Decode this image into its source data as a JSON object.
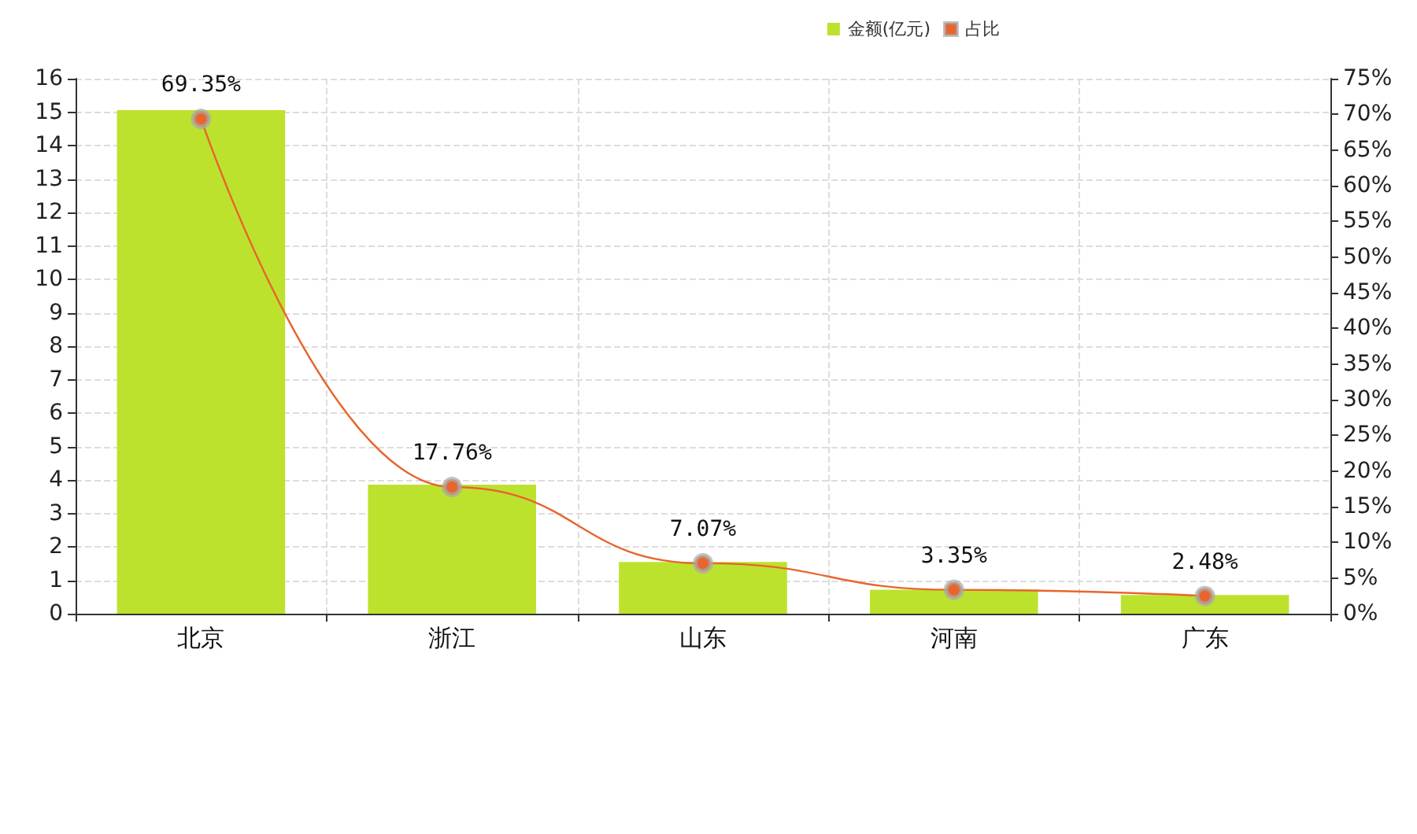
{
  "chart_data": {
    "type": "bar",
    "categories": [
      "北京",
      "浙江",
      "山东",
      "河南",
      "广东"
    ],
    "series": [
      {
        "name": "金额(亿元)",
        "color": "#bde22e",
        "values": [
          15.06,
          3.86,
          1.55,
          0.72,
          0.56
        ]
      },
      {
        "name": "占比",
        "type": "line",
        "axis": "y2",
        "color": "#e8652e",
        "values": [
          69.35,
          17.76,
          7.07,
          3.35,
          2.48
        ],
        "value_labels": [
          "69.35%",
          "17.76%",
          "7.07%",
          "3.35%",
          "2.48%"
        ],
        "marker": "circle"
      }
    ],
    "ylim": [
      0,
      16
    ],
    "yticks": [
      0,
      1,
      2,
      3,
      4,
      5,
      6,
      7,
      8,
      9,
      10,
      11,
      12,
      13,
      14,
      15,
      16
    ],
    "y2lim": [
      0,
      75
    ],
    "y2ticks": [
      {
        "value": 0,
        "label": "0%"
      },
      {
        "value": 5,
        "label": "5%"
      },
      {
        "value": 10,
        "label": "10%"
      },
      {
        "value": 15,
        "label": "15%"
      },
      {
        "value": 20,
        "label": "20%"
      },
      {
        "value": 25,
        "label": "25%"
      },
      {
        "value": 30,
        "label": "30%"
      },
      {
        "value": 35,
        "label": "35%"
      },
      {
        "value": 40,
        "label": "40%"
      },
      {
        "value": 45,
        "label": "45%"
      },
      {
        "value": 50,
        "label": "50%"
      },
      {
        "value": 55,
        "label": "55%"
      },
      {
        "value": 60,
        "label": "60%"
      },
      {
        "value": 65,
        "label": "65%"
      },
      {
        "value": 70,
        "label": "70%"
      },
      {
        "value": 75,
        "label": "75%"
      }
    ],
    "grid": true,
    "legend": "top right"
  }
}
